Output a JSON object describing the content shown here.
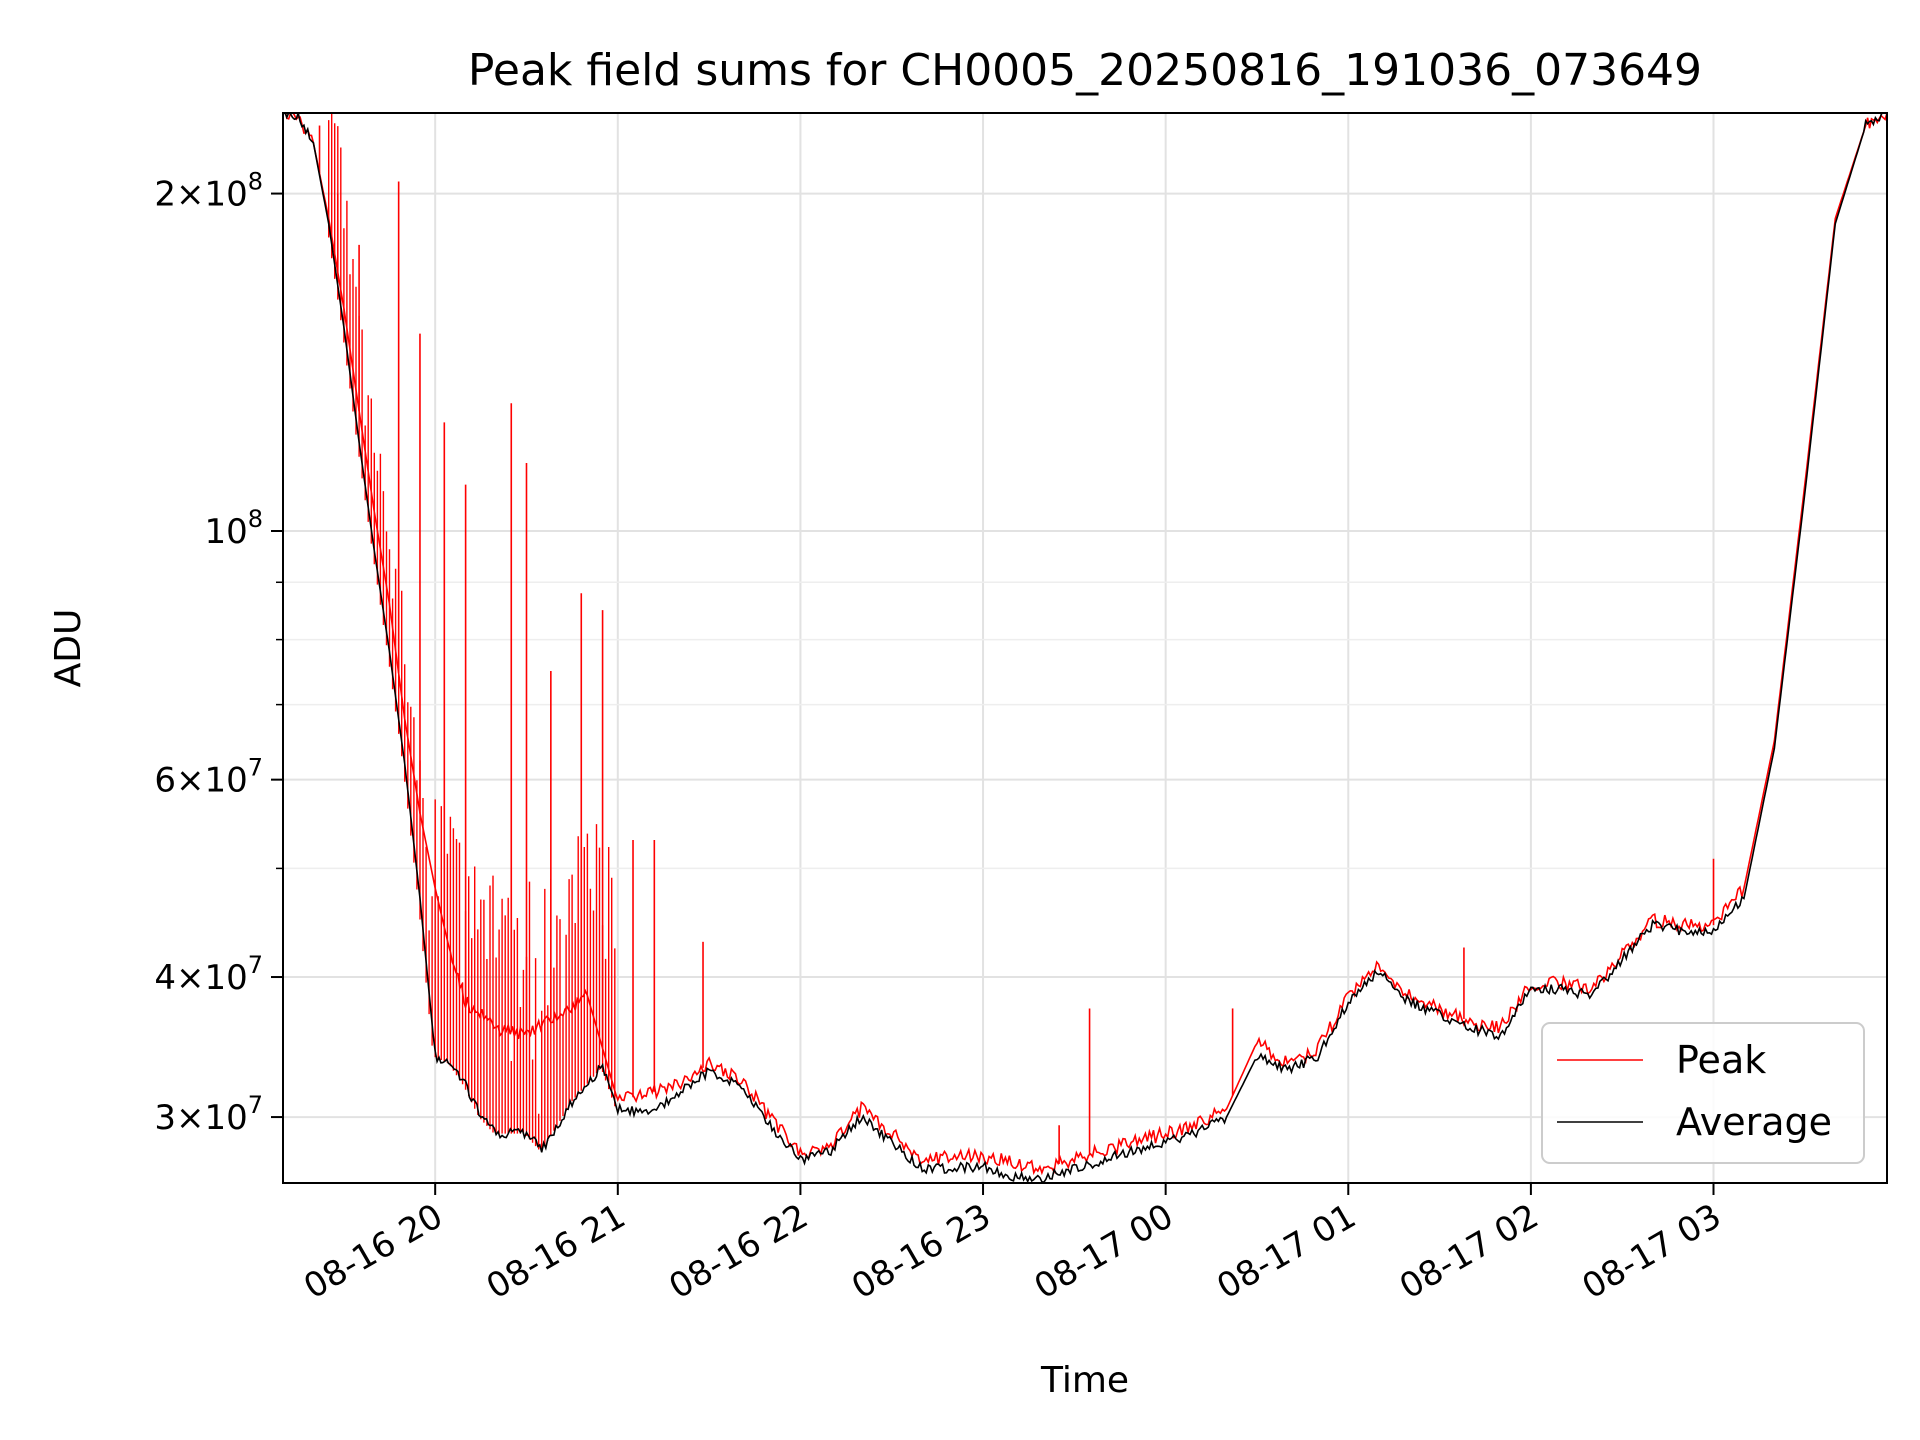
{
  "chart_data": {
    "type": "line",
    "title": "Peak field sums for CH0005_20250816_191036_073649",
    "xlabel": "Time",
    "ylabel": "ADU",
    "y_scale": "log",
    "ylim": [
      26200000,
      236000000
    ],
    "xlim": [
      "2025-08-16 19:10",
      "2025-08-17 03:57"
    ],
    "x_ticks": [
      {
        "t": "2025-08-16 20:00",
        "label": "08-16 20"
      },
      {
        "t": "2025-08-16 21:00",
        "label": "08-16 21"
      },
      {
        "t": "2025-08-16 22:00",
        "label": "08-16 22"
      },
      {
        "t": "2025-08-16 23:00",
        "label": "08-16 23"
      },
      {
        "t": "2025-08-17 00:00",
        "label": "08-17 00"
      },
      {
        "t": "2025-08-17 01:00",
        "label": "08-17 01"
      },
      {
        "t": "2025-08-17 02:00",
        "label": "08-17 02"
      },
      {
        "t": "2025-08-17 03:00",
        "label": "08-17 03"
      }
    ],
    "y_major_ticks": [
      {
        "value": 30000000,
        "mant": "3",
        "exp": "7"
      },
      {
        "value": 40000000,
        "mant": "4",
        "exp": "7"
      },
      {
        "value": 60000000,
        "mant": "6",
        "exp": "7"
      },
      {
        "value": 100000000,
        "mant": "",
        "exp": "8"
      },
      {
        "value": 200000000,
        "mant": "2",
        "exp": "8"
      }
    ],
    "y_minor_ticks": [
      50000000,
      70000000,
      80000000,
      90000000
    ],
    "grid": true,
    "legend_position": "bottom-right",
    "series": [
      {
        "name": "Peak",
        "color": "#ff0000",
        "points": [
          [
            "2025-08-16 19:10",
            236000000
          ],
          [
            "2025-08-16 19:15",
            234000000
          ],
          [
            "2025-08-16 19:20",
            222000000
          ],
          [
            "2025-08-16 19:25",
            190000000
          ],
          [
            "2025-08-16 19:30",
            158000000
          ],
          [
            "2025-08-16 19:35",
            128000000
          ],
          [
            "2025-08-16 19:40",
            104000000
          ],
          [
            "2025-08-16 19:45",
            86000000
          ],
          [
            "2025-08-16 19:50",
            68000000
          ],
          [
            "2025-08-16 19:55",
            56000000
          ],
          [
            "2025-08-16 20:00",
            48000000
          ],
          [
            "2025-08-16 20:05",
            42000000
          ],
          [
            "2025-08-16 20:10",
            38000000
          ],
          [
            "2025-08-16 20:20",
            36000000
          ],
          [
            "2025-08-16 20:30",
            35500000
          ],
          [
            "2025-08-16 20:40",
            37000000
          ],
          [
            "2025-08-16 20:50",
            38500000
          ],
          [
            "2025-08-16 21:00",
            31000000
          ],
          [
            "2025-08-16 21:10",
            31500000
          ],
          [
            "2025-08-16 21:20",
            32000000
          ],
          [
            "2025-08-16 21:30",
            33500000
          ],
          [
            "2025-08-16 21:40",
            32500000
          ],
          [
            "2025-08-16 21:50",
            30000000
          ],
          [
            "2025-08-16 22:00",
            27800000
          ],
          [
            "2025-08-16 22:10",
            28300000
          ],
          [
            "2025-08-16 22:20",
            30500000
          ],
          [
            "2025-08-16 22:30",
            29000000
          ],
          [
            "2025-08-16 22:40",
            27500000
          ],
          [
            "2025-08-16 22:50",
            27600000
          ],
          [
            "2025-08-16 23:00",
            27700000
          ],
          [
            "2025-08-16 23:10",
            27300000
          ],
          [
            "2025-08-16 23:20",
            27000000
          ],
          [
            "2025-08-16 23:30",
            27500000
          ],
          [
            "2025-08-16 23:40",
            28100000
          ],
          [
            "2025-08-16 23:50",
            28500000
          ],
          [
            "2025-08-17 00:00",
            29000000
          ],
          [
            "2025-08-17 00:10",
            29500000
          ],
          [
            "2025-08-17 00:20",
            30500000
          ],
          [
            "2025-08-17 00:30",
            35000000
          ],
          [
            "2025-08-17 00:40",
            33500000
          ],
          [
            "2025-08-17 00:50",
            34500000
          ],
          [
            "2025-08-17 01:00",
            38500000
          ],
          [
            "2025-08-17 01:10",
            41000000
          ],
          [
            "2025-08-17 01:20",
            38500000
          ],
          [
            "2025-08-17 01:30",
            37500000
          ],
          [
            "2025-08-17 01:40",
            36500000
          ],
          [
            "2025-08-17 01:50",
            36000000
          ],
          [
            "2025-08-17 02:00",
            39500000
          ],
          [
            "2025-08-17 02:10",
            39500000
          ],
          [
            "2025-08-17 02:20",
            39000000
          ],
          [
            "2025-08-17 02:30",
            42000000
          ],
          [
            "2025-08-17 02:40",
            45000000
          ],
          [
            "2025-08-17 02:50",
            44500000
          ],
          [
            "2025-08-17 03:00",
            44500000
          ],
          [
            "2025-08-17 03:10",
            48000000
          ],
          [
            "2025-08-17 03:20",
            65000000
          ],
          [
            "2025-08-17 03:30",
            110000000
          ],
          [
            "2025-08-17 03:40",
            190000000
          ],
          [
            "2025-08-17 03:50",
            230000000
          ],
          [
            "2025-08-17 03:57",
            236000000
          ]
        ],
        "spikes": [
          [
            "2025-08-16 19:22",
            230000000
          ],
          [
            "2025-08-16 19:28",
            200000000
          ],
          [
            "2025-08-16 19:35",
            180000000
          ],
          [
            "2025-08-16 19:48",
            205000000
          ],
          [
            "2025-08-16 19:55",
            150000000
          ],
          [
            "2025-08-16 20:03",
            125000000
          ],
          [
            "2025-08-16 20:10",
            110000000
          ],
          [
            "2025-08-16 20:25",
            130000000
          ],
          [
            "2025-08-16 20:30",
            115000000
          ],
          [
            "2025-08-16 20:38",
            75000000
          ],
          [
            "2025-08-16 20:48",
            88000000
          ],
          [
            "2025-08-16 20:55",
            85000000
          ],
          [
            "2025-08-16 21:05",
            53000000
          ],
          [
            "2025-08-16 21:12",
            53000000
          ],
          [
            "2025-08-16 21:28",
            43000000
          ],
          [
            "2025-08-16 23:25",
            29500000
          ],
          [
            "2025-08-16 23:35",
            37500000
          ],
          [
            "2025-08-17 00:22",
            37500000
          ],
          [
            "2025-08-17 01:38",
            42500000
          ],
          [
            "2025-08-17 03:00",
            51000000
          ]
        ]
      },
      {
        "name": "Average",
        "color": "#000000",
        "points": [
          [
            "2025-08-16 19:10",
            236000000
          ],
          [
            "2025-08-16 19:15",
            234000000
          ],
          [
            "2025-08-16 19:20",
            222000000
          ],
          [
            "2025-08-16 19:25",
            188000000
          ],
          [
            "2025-08-16 19:30",
            152000000
          ],
          [
            "2025-08-16 19:35",
            120000000
          ],
          [
            "2025-08-16 19:40",
            96000000
          ],
          [
            "2025-08-16 19:45",
            78000000
          ],
          [
            "2025-08-16 19:50",
            62000000
          ],
          [
            "2025-08-16 19:55",
            47000000
          ],
          [
            "2025-08-16 20:00",
            34000000
          ],
          [
            "2025-08-16 20:05",
            33500000
          ],
          [
            "2025-08-16 20:10",
            32000000
          ],
          [
            "2025-08-16 20:15",
            30000000
          ],
          [
            "2025-08-16 20:20",
            29000000
          ],
          [
            "2025-08-16 20:30",
            29000000
          ],
          [
            "2025-08-16 20:35",
            28000000
          ],
          [
            "2025-08-16 20:45",
            31000000
          ],
          [
            "2025-08-16 20:55",
            33300000
          ],
          [
            "2025-08-16 21:00",
            30500000
          ],
          [
            "2025-08-16 21:10",
            30200000
          ],
          [
            "2025-08-16 21:20",
            31500000
          ],
          [
            "2025-08-16 21:30",
            33000000
          ],
          [
            "2025-08-16 21:40",
            32000000
          ],
          [
            "2025-08-16 21:50",
            29500000
          ],
          [
            "2025-08-16 22:00",
            27500000
          ],
          [
            "2025-08-16 22:10",
            28000000
          ],
          [
            "2025-08-16 22:20",
            30000000
          ],
          [
            "2025-08-16 22:30",
            28500000
          ],
          [
            "2025-08-16 22:40",
            27000000
          ],
          [
            "2025-08-16 22:50",
            27000000
          ],
          [
            "2025-08-16 23:00",
            27100000
          ],
          [
            "2025-08-16 23:10",
            26500000
          ],
          [
            "2025-08-16 23:20",
            26500000
          ],
          [
            "2025-08-16 23:30",
            27000000
          ],
          [
            "2025-08-16 23:40",
            27500000
          ],
          [
            "2025-08-16 23:50",
            28000000
          ],
          [
            "2025-08-17 00:00",
            28500000
          ],
          [
            "2025-08-17 00:10",
            29000000
          ],
          [
            "2025-08-17 00:20",
            30000000
          ],
          [
            "2025-08-17 00:30",
            34000000
          ],
          [
            "2025-08-17 00:40",
            33000000
          ],
          [
            "2025-08-17 00:50",
            34000000
          ],
          [
            "2025-08-17 01:00",
            38000000
          ],
          [
            "2025-08-17 01:10",
            40500000
          ],
          [
            "2025-08-17 01:20",
            38000000
          ],
          [
            "2025-08-17 01:30",
            37000000
          ],
          [
            "2025-08-17 01:40",
            36000000
          ],
          [
            "2025-08-17 01:50",
            35500000
          ],
          [
            "2025-08-17 02:00",
            39000000
          ],
          [
            "2025-08-17 02:10",
            39000000
          ],
          [
            "2025-08-17 02:20",
            38500000
          ],
          [
            "2025-08-17 02:30",
            41500000
          ],
          [
            "2025-08-17 02:40",
            44500000
          ],
          [
            "2025-08-17 02:50",
            44000000
          ],
          [
            "2025-08-17 03:00",
            44000000
          ],
          [
            "2025-08-17 03:10",
            47000000
          ],
          [
            "2025-08-17 03:20",
            64000000
          ],
          [
            "2025-08-17 03:30",
            108000000
          ],
          [
            "2025-08-17 03:40",
            188000000
          ],
          [
            "2025-08-17 03:50",
            230000000
          ],
          [
            "2025-08-17 03:57",
            236000000
          ]
        ]
      }
    ]
  }
}
